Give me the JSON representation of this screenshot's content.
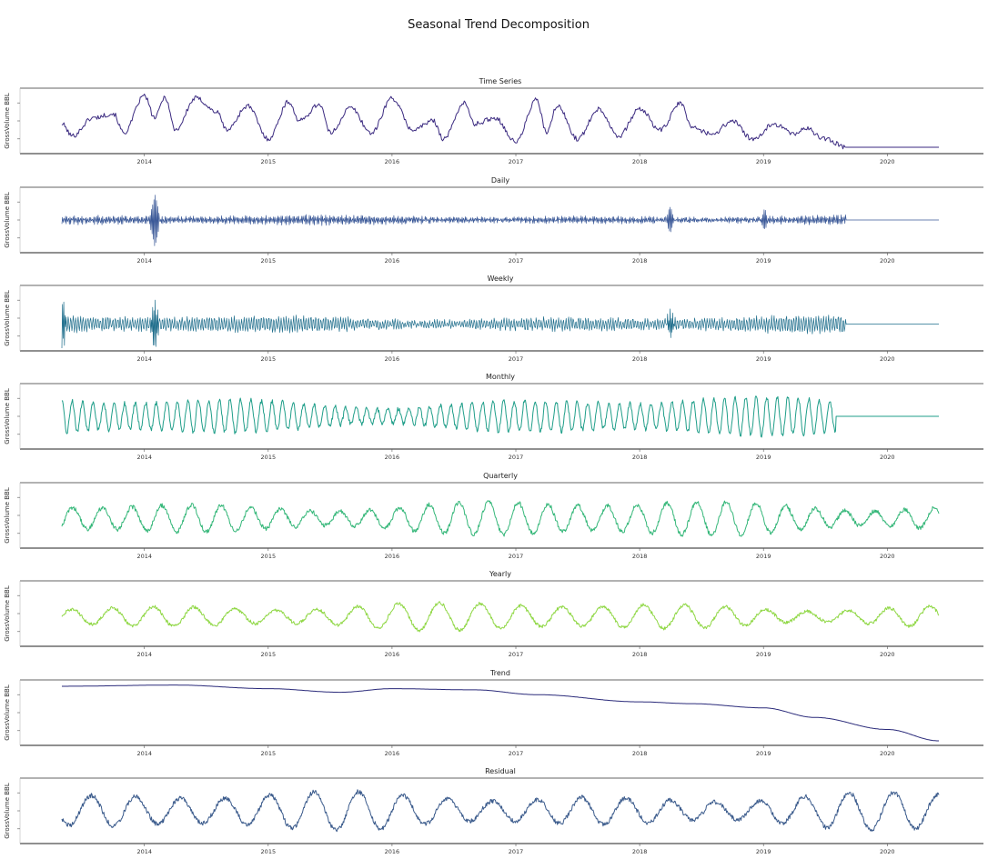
{
  "figure": {
    "title": "Seasonal Trend Decomposition"
  },
  "chart_data": [
    {
      "type": "line",
      "title": "Time Series",
      "ylabel": "GrossVolume BBL",
      "xlabel": "",
      "x_ticks": [
        "2014",
        "2015",
        "2016",
        "2017",
        "2018",
        "2019",
        "2020"
      ],
      "xlim": [
        "2013-05",
        "2020-06"
      ],
      "series": [
        {
          "color": "#3b2a80",
          "pattern": "irregular",
          "points": [
            [
              "2013-05",
              0.45
            ],
            [
              "2013-06",
              0.25
            ],
            [
              "2013-08",
              0.55
            ],
            [
              "2013-10",
              0.62
            ],
            [
              "2013-11",
              0.3
            ],
            [
              "2014-01",
              0.92
            ],
            [
              "2014-02",
              0.55
            ],
            [
              "2014-03",
              0.9
            ],
            [
              "2014-04",
              0.35
            ],
            [
              "2014-06",
              0.88
            ],
            [
              "2014-08",
              0.65
            ],
            [
              "2014-09",
              0.35
            ],
            [
              "2014-11",
              0.75
            ],
            [
              "2015-01",
              0.2
            ],
            [
              "2015-03",
              0.82
            ],
            [
              "2015-04",
              0.5
            ],
            [
              "2015-06",
              0.78
            ],
            [
              "2015-07",
              0.3
            ],
            [
              "2015-09",
              0.72
            ],
            [
              "2015-11",
              0.3
            ],
            [
              "2016-01",
              0.88
            ],
            [
              "2016-03",
              0.35
            ],
            [
              "2016-05",
              0.5
            ],
            [
              "2016-06",
              0.2
            ],
            [
              "2016-08",
              0.8
            ],
            [
              "2016-09",
              0.45
            ],
            [
              "2016-11",
              0.55
            ],
            [
              "2017-01",
              0.15
            ],
            [
              "2017-03",
              0.85
            ],
            [
              "2017-04",
              0.3
            ],
            [
              "2017-05",
              0.75
            ],
            [
              "2017-07",
              0.2
            ],
            [
              "2017-09",
              0.7
            ],
            [
              "2017-11",
              0.25
            ],
            [
              "2018-01",
              0.7
            ],
            [
              "2018-03",
              0.35
            ],
            [
              "2018-05",
              0.8
            ],
            [
              "2018-06",
              0.4
            ],
            [
              "2018-08",
              0.28
            ],
            [
              "2018-10",
              0.5
            ],
            [
              "2018-12",
              0.18
            ],
            [
              "2019-02",
              0.45
            ],
            [
              "2019-04",
              0.28
            ],
            [
              "2019-05",
              0.38
            ],
            [
              "2019-07",
              0.2
            ],
            [
              "2019-09",
              0.06
            ],
            [
              "2020-06",
              0.06
            ]
          ]
        }
      ]
    },
    {
      "type": "line",
      "title": "Daily",
      "ylabel": "GrossVolume BBL",
      "xlabel": "",
      "x_ticks": [
        "2014",
        "2015",
        "2016",
        "2017",
        "2018",
        "2019",
        "2020"
      ],
      "xlim": [
        "2013-05",
        "2020-06"
      ],
      "series": [
        {
          "color": "#3b5998",
          "pattern": "high-frequency band",
          "level": 0.5,
          "amplitude": 0.07,
          "spikes": [
            [
              "2014-02",
              0.48
            ],
            [
              "2018-04",
              0.2
            ],
            [
              "2019-01",
              0.15
            ]
          ],
          "flat_after": "2019-09"
        }
      ]
    },
    {
      "type": "line",
      "title": "Weekly",
      "ylabel": "GrossVolume BBL",
      "xlabel": "",
      "x_ticks": [
        "2014",
        "2015",
        "2016",
        "2017",
        "2018",
        "2019",
        "2020"
      ],
      "xlim": [
        "2013-05",
        "2020-06"
      ],
      "series": [
        {
          "color": "#1f6e8c",
          "pattern": "weekly oscillation",
          "level": 0.4,
          "amplitude": 0.12,
          "spikes": [
            [
              "2013-05",
              0.48
            ],
            [
              "2014-02",
              0.38
            ],
            [
              "2018-04",
              0.18
            ]
          ],
          "flat_after": "2019-09"
        }
      ]
    },
    {
      "type": "line",
      "title": "Monthly",
      "ylabel": "GrossVolume BBL",
      "xlabel": "",
      "x_ticks": [
        "2014",
        "2015",
        "2016",
        "2017",
        "2018",
        "2019",
        "2020"
      ],
      "xlim": [
        "2013-05",
        "2020-06"
      ],
      "series": [
        {
          "color": "#1f9e89",
          "pattern": "monthly oscillation",
          "level": 0.5,
          "amplitude": 0.3,
          "flat_after": "2019-08"
        }
      ]
    },
    {
      "type": "line",
      "title": "Quarterly",
      "ylabel": "GrossVolume BBL",
      "xlabel": "",
      "x_ticks": [
        "2014",
        "2015",
        "2016",
        "2017",
        "2018",
        "2019",
        "2020"
      ],
      "xlim": [
        "2013-05",
        "2020-06"
      ],
      "series": [
        {
          "color": "#35b779",
          "pattern": "quarterly oscillation",
          "level": 0.45,
          "amplitude": 0.28
        }
      ]
    },
    {
      "type": "line",
      "title": "Yearly",
      "ylabel": "GrossVolume BBL",
      "xlabel": "",
      "x_ticks": [
        "2014",
        "2015",
        "2016",
        "2017",
        "2018",
        "2019",
        "2020"
      ],
      "xlim": [
        "2013-05",
        "2020-06"
      ],
      "series": [
        {
          "color": "#8fd744",
          "pattern": "seasonal oscillation",
          "level": 0.45,
          "amplitude": 0.22
        }
      ]
    },
    {
      "type": "line",
      "title": "Trend",
      "ylabel": "GrossVolume BBL",
      "xlabel": "",
      "x_ticks": [
        "2014",
        "2015",
        "2016",
        "2017",
        "2018",
        "2019",
        "2020"
      ],
      "xlim": [
        "2013-05",
        "2020-06"
      ],
      "series": [
        {
          "color": "#2a2a7a",
          "points": [
            [
              "2013-05",
              0.94
            ],
            [
              "2014-04",
              0.96
            ],
            [
              "2015-01",
              0.9
            ],
            [
              "2015-08",
              0.84
            ],
            [
              "2016-01",
              0.9
            ],
            [
              "2016-09",
              0.88
            ],
            [
              "2017-03",
              0.8
            ],
            [
              "2018-01",
              0.68
            ],
            [
              "2018-06",
              0.65
            ],
            [
              "2019-01",
              0.58
            ],
            [
              "2019-06",
              0.42
            ],
            [
              "2020-01",
              0.22
            ],
            [
              "2020-06",
              0.03
            ]
          ]
        }
      ]
    },
    {
      "type": "line",
      "title": "Residual",
      "ylabel": "GrossVolume BBL",
      "xlabel": "",
      "x_ticks": [
        "2014",
        "2015",
        "2016",
        "2017",
        "2018",
        "2019",
        "2020"
      ],
      "xlim": [
        "2013-05",
        "2020-06"
      ],
      "series": [
        {
          "color": "#3b5b8c",
          "pattern": "smooth residual",
          "level": 0.5,
          "amplitude": 0.3
        }
      ]
    }
  ]
}
